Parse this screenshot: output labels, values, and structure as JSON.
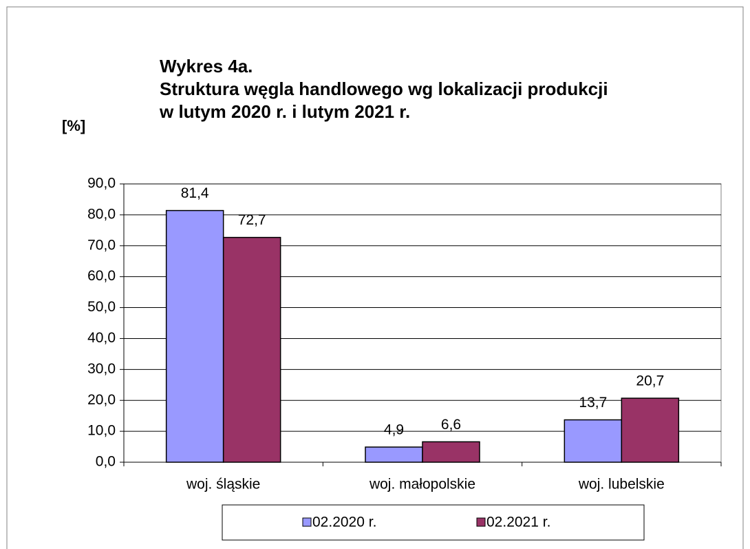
{
  "chart_data": {
    "type": "bar",
    "title": [
      "Wykres 4a.",
      "Struktura węgla handlowego wg lokalizacji produkcji",
      "w lutym 2020 r. i lutym 2021 r."
    ],
    "y_label": "[%]",
    "categories": [
      "woj. śląskie",
      "woj. małopolskie",
      "woj. lubelskie"
    ],
    "series": [
      {
        "name": "02.2020 r.",
        "color": "#9999ff",
        "values": [
          81.4,
          4.9,
          13.7
        ],
        "value_labels": [
          "81,4",
          "4,9",
          "13,7"
        ]
      },
      {
        "name": "02.2021 r.",
        "color": "#993366",
        "values": [
          72.7,
          6.6,
          20.7
        ],
        "value_labels": [
          "72,7",
          "6,6",
          "20,7"
        ]
      }
    ],
    "ylim": [
      0,
      90
    ],
    "yticks": [
      {
        "value": 0,
        "label": "0,0"
      },
      {
        "value": 10,
        "label": "10,0"
      },
      {
        "value": 20,
        "label": "20,0"
      },
      {
        "value": 30,
        "label": "30,0"
      },
      {
        "value": 40,
        "label": "40,0"
      },
      {
        "value": 50,
        "label": "50,0"
      },
      {
        "value": 60,
        "label": "60,0"
      },
      {
        "value": 70,
        "label": "70,0"
      },
      {
        "value": 80,
        "label": "80,0"
      },
      {
        "value": 90,
        "label": "90,0"
      }
    ],
    "grid": true,
    "legend": "bottom"
  }
}
